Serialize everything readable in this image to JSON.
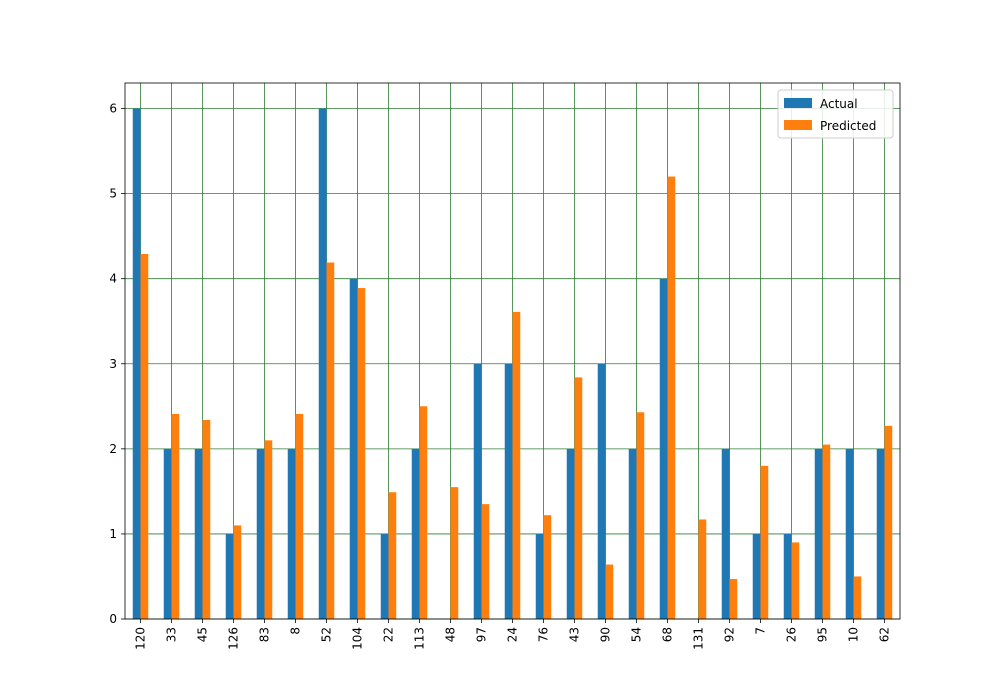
{
  "chart_data": {
    "type": "bar",
    "title": "",
    "xlabel": "",
    "ylabel": "",
    "categories": [
      "120",
      "33",
      "45",
      "126",
      "83",
      "8",
      "52",
      "104",
      "22",
      "113",
      "48",
      "97",
      "24",
      "76",
      "43",
      "90",
      "54",
      "68",
      "131",
      "92",
      "7",
      "26",
      "95",
      "10",
      "62"
    ],
    "series": [
      {
        "name": "Actual",
        "color": "#1f77b4",
        "values": [
          6,
          2,
          2,
          1,
          2,
          2,
          6,
          4,
          1,
          2,
          0,
          3,
          3,
          1,
          2,
          3,
          2,
          4,
          0,
          2,
          1,
          1,
          2,
          2,
          2
        ]
      },
      {
        "name": "Predicted",
        "color": "#ff7f0e",
        "values": [
          4.29,
          2.41,
          2.34,
          1.1,
          2.1,
          2.41,
          4.19,
          3.89,
          1.49,
          2.5,
          1.55,
          1.35,
          3.61,
          1.22,
          2.84,
          0.64,
          2.43,
          5.2,
          1.17,
          0.47,
          1.8,
          0.9,
          2.05,
          0.5,
          2.27
        ]
      }
    ],
    "ylim": [
      0,
      6.3
    ],
    "yticks": [
      0,
      1,
      2,
      3,
      4,
      5,
      6
    ],
    "grid": true,
    "grid_color": "#2e7d32",
    "legend_position": "top-right"
  }
}
